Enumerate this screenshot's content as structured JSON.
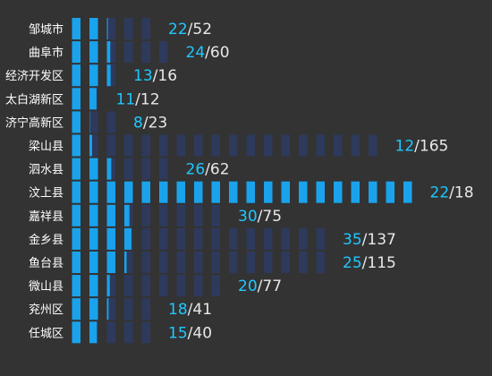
{
  "chart_data": {
    "type": "bar",
    "title": "",
    "xlabel": "",
    "ylabel": "",
    "categories": [
      "邹城市",
      "曲阜市",
      "经济开发区",
      "太白湖新区",
      "济宁高新区",
      "梁山县",
      "泗水县",
      "汶上县",
      "嘉祥县",
      "金乡县",
      "鱼台县",
      "微山县",
      "兖州区",
      "任城区"
    ],
    "series": [
      {
        "values": [
          22,
          24,
          13,
          11,
          8,
          12,
          26,
          22,
          30,
          35,
          25,
          20,
          18,
          15
        ]
      },
      {
        "values": [
          52,
          60,
          16,
          12,
          23,
          165,
          62,
          18,
          75,
          137,
          115,
          77,
          41,
          40
        ]
      }
    ],
    "value_labels": [
      {
        "done": "22",
        "total": "52"
      },
      {
        "done": "24",
        "total": "60"
      },
      {
        "done": "13",
        "total": "16"
      },
      {
        "done": "11",
        "total": "12"
      },
      {
        "done": "8",
        "total": "23"
      },
      {
        "done": "12",
        "total": "165"
      },
      {
        "done": "26",
        "total": "62"
      },
      {
        "done": "22",
        "total": "18"
      },
      {
        "done": "30",
        "total": "75"
      },
      {
        "done": "35",
        "total": "137"
      },
      {
        "done": "25",
        "total": "115"
      },
      {
        "done": "20",
        "total": "77"
      },
      {
        "done": "18",
        "total": "41"
      },
      {
        "done": "15",
        "total": "40"
      }
    ],
    "segments": [
      5,
      6,
      3,
      2,
      3,
      18,
      6,
      20,
      9,
      15,
      15,
      9,
      5,
      5
    ],
    "separator": "/",
    "colors": {
      "filled": "#1aa3ec",
      "partial": "#1aa3ec",
      "empty": "#2e3a5c",
      "done_text": "#1ec8ff",
      "total_text": "#e8e8e8",
      "background": "#333333"
    }
  }
}
